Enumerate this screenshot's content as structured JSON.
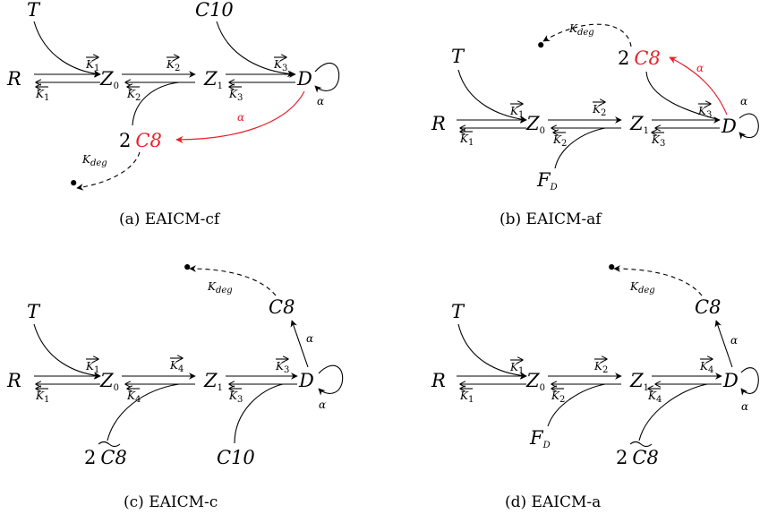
{
  "panels": {
    "a": {
      "caption": "(a) EAICM-cf",
      "nodes": {
        "T": "T",
        "R": "R",
        "Z0": "Z",
        "Z0_sub": "0",
        "Z1": "Z",
        "Z1_sub": "1",
        "C10": "C10",
        "D": "D",
        "C8_coef": "2",
        "C8": "C8",
        "sink": "•"
      },
      "edges": {
        "k1": "K",
        "k1_sub": "1",
        "k2": "K",
        "k2_sub": "2",
        "k3": "K",
        "k3_sub": "3",
        "kdeg": "K",
        "kdeg_sub": "deg",
        "alpha": "α"
      }
    },
    "b": {
      "caption": "(b) EAICM-af",
      "nodes": {
        "T": "T",
        "R": "R",
        "Z0": "Z",
        "Z0_sub": "0",
        "Z1": "Z",
        "Z1_sub": "1",
        "D": "D",
        "C8_coef": "2",
        "C8": "C8",
        "FD": "F",
        "FD_sub": "D",
        "sink": "•"
      },
      "edges": {
        "k1": "K",
        "k1_sub": "1",
        "k2": "K",
        "k2_sub": "2",
        "k3": "K",
        "k3_sub": "3",
        "kdeg": "K",
        "kdeg_sub": "deg",
        "alpha": "α"
      }
    },
    "c": {
      "caption": "(c) EAICM-c",
      "nodes": {
        "T": "T",
        "R": "R",
        "Z0": "Z",
        "Z0_sub": "0",
        "Z1": "Z",
        "Z1_sub": "1",
        "D": "D",
        "C8": "C8",
        "C8t_coef": "2",
        "C8t": "C8",
        "C10": "C10",
        "sink": "•"
      },
      "edges": {
        "k1": "K",
        "k1_sub": "1",
        "k4": "K",
        "k4_sub": "4",
        "k3": "K",
        "k3_sub": "3",
        "kdeg": "K",
        "kdeg_sub": "deg",
        "alpha": "α"
      }
    },
    "d": {
      "caption": "(d) EAICM-a",
      "nodes": {
        "T": "T",
        "R": "R",
        "Z0": "Z",
        "Z0_sub": "0",
        "Z1": "Z",
        "Z1_sub": "1",
        "D": "D",
        "C8": "C8",
        "FD": "F",
        "FD_sub": "D",
        "C8t_coef": "2",
        "C8t": "C8",
        "sink": "•"
      },
      "edges": {
        "k1": "K",
        "k1_sub": "1",
        "k2": "K",
        "k2_sub": "2",
        "k4": "K",
        "k4_sub": "4",
        "kdeg": "K",
        "kdeg_sub": "deg",
        "alpha": "α"
      }
    }
  },
  "colors": {
    "highlight": "#e8202a",
    "ink": "#000000"
  }
}
